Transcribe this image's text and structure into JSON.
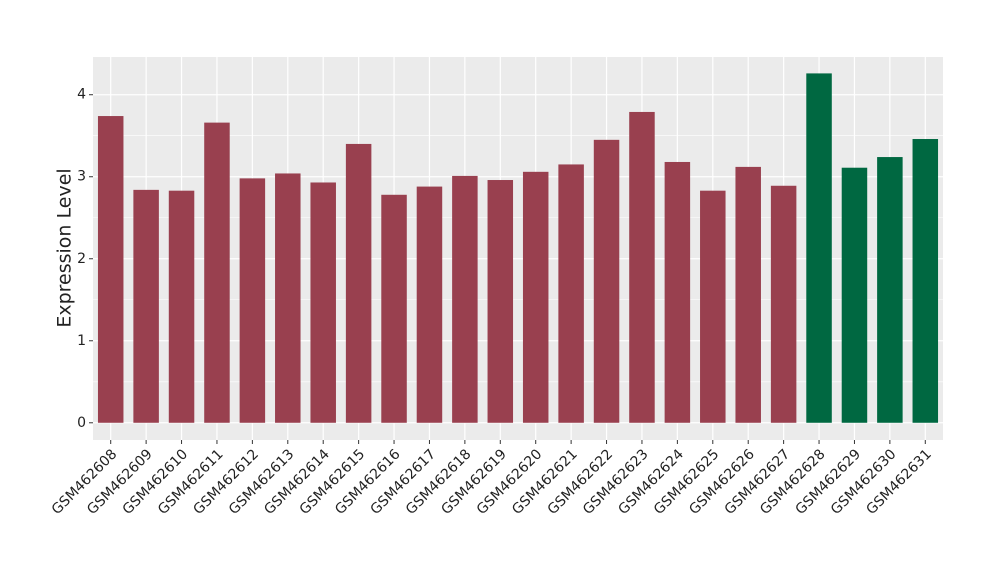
{
  "chart_data": {
    "type": "bar",
    "y_label": "Expression Level",
    "categories": [
      "GSM462608",
      "GSM462609",
      "GSM462610",
      "GSM462611",
      "GSM462612",
      "GSM462613",
      "GSM462614",
      "GSM462615",
      "GSM462616",
      "GSM462617",
      "GSM462618",
      "GSM462619",
      "GSM462620",
      "GSM462621",
      "GSM462622",
      "GSM462623",
      "GSM462624",
      "GSM462625",
      "GSM462626",
      "GSM462627",
      "GSM462628",
      "GSM462629",
      "GSM462630",
      "GSM462631"
    ],
    "values": [
      3.74,
      2.84,
      2.83,
      3.66,
      2.98,
      3.04,
      2.93,
      3.4,
      2.78,
      2.88,
      3.01,
      2.96,
      3.06,
      3.15,
      3.45,
      3.79,
      3.18,
      2.83,
      3.12,
      2.89,
      4.26,
      3.11,
      3.24,
      3.46
    ],
    "colors": [
      "#99404f",
      "#99404f",
      "#99404f",
      "#99404f",
      "#99404f",
      "#99404f",
      "#99404f",
      "#99404f",
      "#99404f",
      "#99404f",
      "#99404f",
      "#99404f",
      "#99404f",
      "#99404f",
      "#99404f",
      "#99404f",
      "#99404f",
      "#99404f",
      "#99404f",
      "#99404f",
      "#006841",
      "#006841",
      "#006841",
      "#006841"
    ],
    "ylim": [
      -0.21,
      4.46
    ],
    "yticks": [
      0,
      1,
      2,
      3,
      4
    ],
    "grid": true
  }
}
